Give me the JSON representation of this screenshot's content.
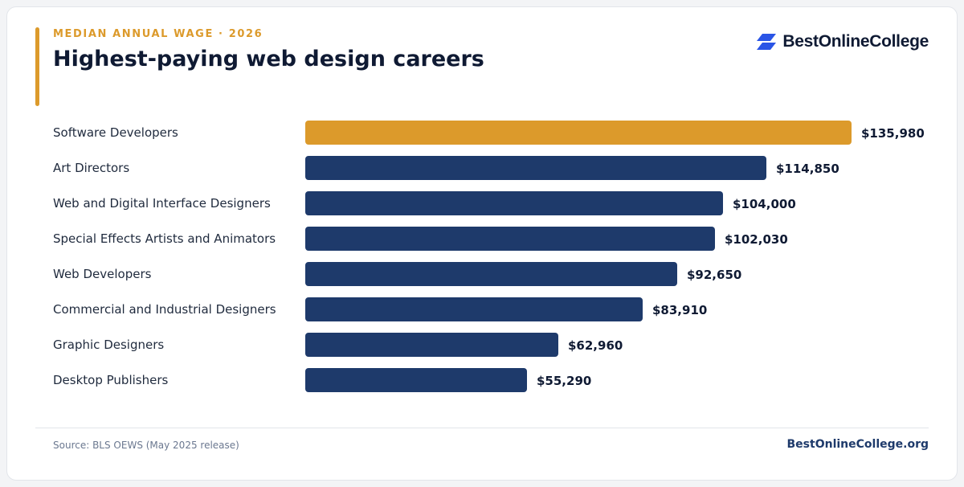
{
  "header": {
    "eyebrow": "MEDIAN ANNUAL WAGE · 2026",
    "title": "Highest-paying web design careers"
  },
  "brand": {
    "name": "BestOnlineCollege",
    "logo_icon": "stacked-parallelogram-logo-icon",
    "logo_color": "#2a55e6"
  },
  "colors": {
    "highlight": "#dc9a2b",
    "bar": "#1e3a6b",
    "label": "#1f2a3d",
    "value": "#0f1a33"
  },
  "chart_data": {
    "type": "bar",
    "orientation": "horizontal",
    "categories": [
      "Software Developers",
      "Art Directors",
      "Web and Digital Interface Designers",
      "Special Effects Artists and Animators",
      "Web Developers",
      "Commercial and Industrial Designers",
      "Graphic Designers",
      "Desktop Publishers"
    ],
    "values": [
      135980,
      114850,
      104000,
      102030,
      92650,
      83910,
      62960,
      55290
    ],
    "value_labels": [
      "$135,980",
      "$114,850",
      "$104,000",
      "$102,030",
      "$92,650",
      "$83,910",
      "$62,960",
      "$55,290"
    ],
    "highlight_index": 0,
    "xlim": [
      0,
      135980
    ],
    "grid": false,
    "legend": "none",
    "title": "Highest-paying web design careers",
    "xlabel": "",
    "ylabel": ""
  },
  "footer": {
    "source": "Source: BLS OEWS (May 2025 release)",
    "url": "BestOnlineCollege.org"
  }
}
